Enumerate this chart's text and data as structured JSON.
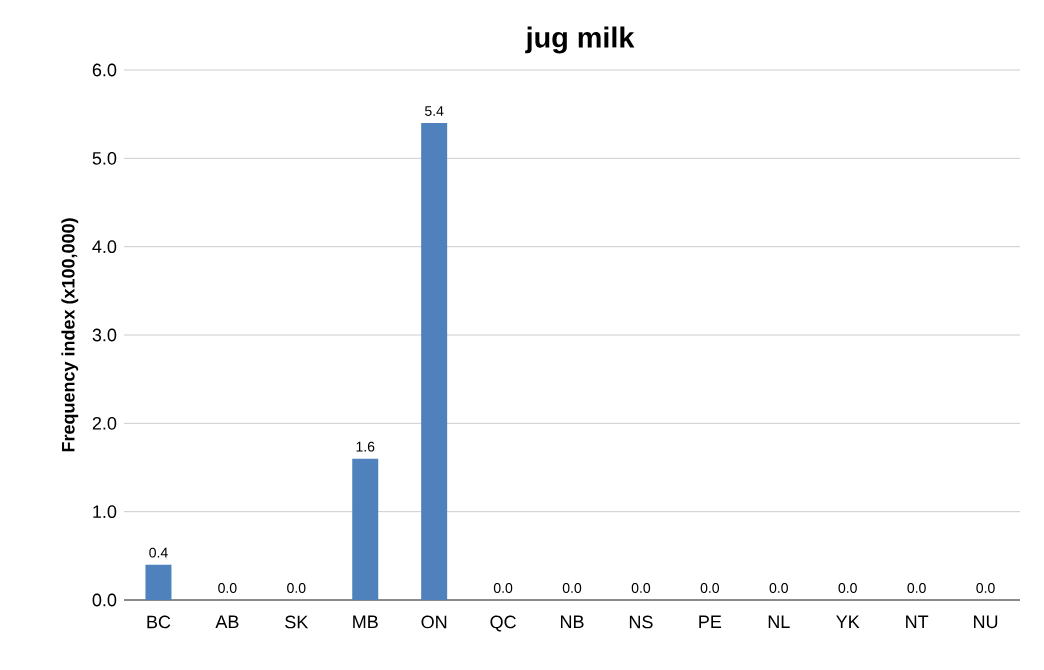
{
  "chart_data": {
    "type": "bar",
    "title": "jug milk",
    "ylabel": "Frequency index (x100,000)",
    "categories": [
      "BC",
      "AB",
      "SK",
      "MB",
      "ON",
      "QC",
      "NB",
      "NS",
      "PE",
      "NL",
      "YK",
      "NT",
      "NU"
    ],
    "values": [
      0.4,
      0,
      0,
      1.6,
      5.4,
      0,
      0,
      0,
      0,
      0,
      0,
      0,
      0
    ],
    "value_labels": [
      "0.4",
      "0.0",
      "0.0",
      "1.6",
      "5.4",
      "0.0",
      "0.0",
      "0.0",
      "0.0",
      "0.0",
      "0.0",
      "0.0",
      "0.0"
    ],
    "color": "#4f81bd",
    "ylim": [
      0,
      6
    ],
    "yticks": [
      {
        "value": 0,
        "label": "0.0"
      },
      {
        "value": 1,
        "label": "1.0"
      },
      {
        "value": 2,
        "label": "2.0"
      },
      {
        "value": 3,
        "label": "3.0"
      },
      {
        "value": 4,
        "label": "4.0"
      },
      {
        "value": 5,
        "label": "5.0"
      },
      {
        "value": 6,
        "label": "6.0"
      }
    ],
    "grid": "y"
  }
}
